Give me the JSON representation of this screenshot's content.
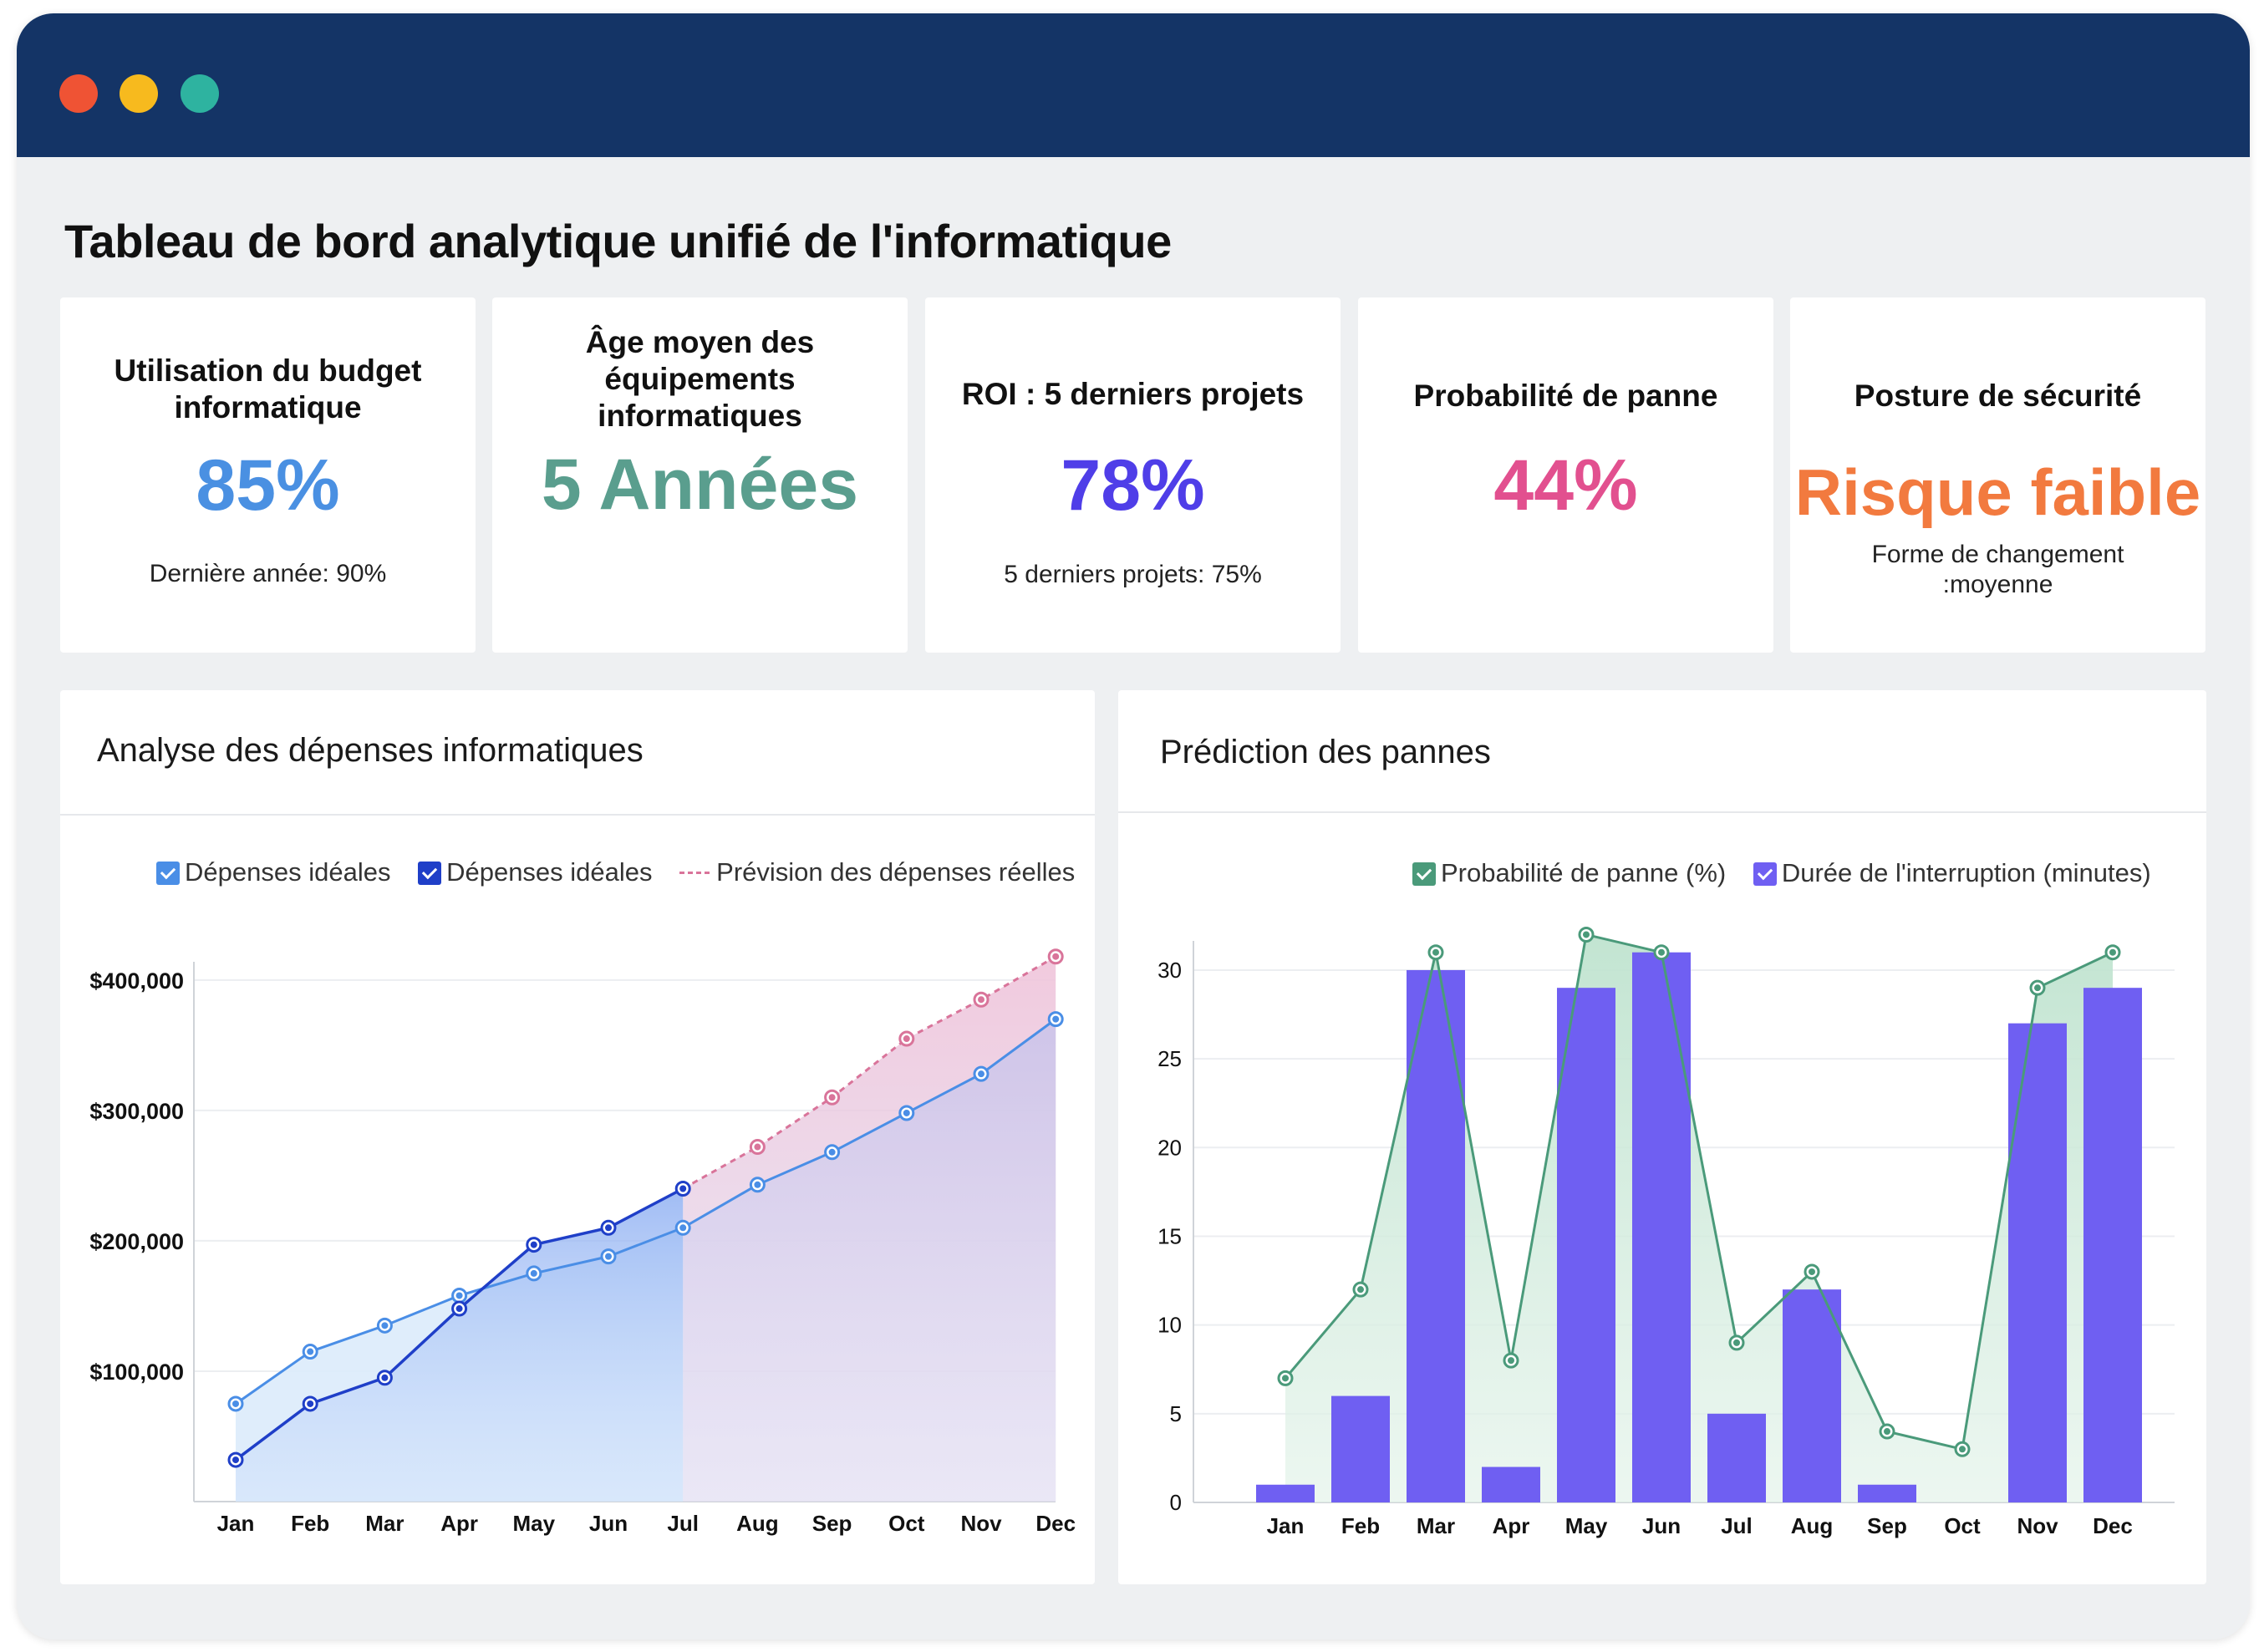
{
  "window": {
    "controls": [
      "close",
      "minimize",
      "maximize"
    ],
    "colors": {
      "titlebar": "#143466",
      "close": "#ef5334",
      "minimize": "#f7ba1e",
      "maximize": "#2eb3a0"
    }
  },
  "page_title": "Tableau de bord analytique unifié de l'informatique",
  "kpis": [
    {
      "label": "Utilisation du budget informatique",
      "value": "85%",
      "sub": "Dernière année: 90%",
      "color": "#4a90e2"
    },
    {
      "label": "Âge moyen des équipements informatiques",
      "value": "5 Années",
      "sub": "",
      "color": "#5a9e8e"
    },
    {
      "label": "ROI : 5 derniers projets",
      "value": "78%",
      "sub": "5 derniers projets: 75%",
      "color": "#4f3ee8"
    },
    {
      "label": "Probabilité de panne",
      "value": "44%",
      "sub": "",
      "color": "#e2508f"
    },
    {
      "label": "Posture de sécurité",
      "value": "Risque faible",
      "sub": "Forme de changement :moyenne",
      "color": "#f27a3f"
    }
  ],
  "spend_panel": {
    "title": "Analyse des dépenses informatiques",
    "legend": [
      {
        "label": "Dépenses idéales",
        "type": "checkbox",
        "color": "#4a8ee6"
      },
      {
        "label": "Dépenses idéales",
        "type": "checkbox",
        "color": "#1f3fc8"
      },
      {
        "label": "Prévision des dépenses réelles",
        "type": "dashed-line",
        "color": "#d9749a"
      }
    ]
  },
  "failure_panel": {
    "title": "Prédiction des pannes",
    "legend": [
      {
        "label": "Probabilité de panne (%)",
        "type": "checkbox",
        "color": "#4a9a7a"
      },
      {
        "label": "Durée de l'interruption (minutes)",
        "type": "checkbox",
        "color": "#6f5ff2"
      }
    ]
  },
  "chart_data": [
    {
      "type": "line",
      "title": "Analyse des dépenses informatiques",
      "categories": [
        "Jan",
        "Feb",
        "Mar",
        "Apr",
        "May",
        "Jun",
        "Jul",
        "Aug",
        "Sep",
        "Oct",
        "Nov",
        "Dec"
      ],
      "ytick_labels": [
        "$100,000",
        "$200,000",
        "$300,000",
        "$400,000"
      ],
      "yticks": [
        100000,
        200000,
        300000,
        400000
      ],
      "ylim": [
        0,
        430000
      ],
      "grid": true,
      "legend_position": "top",
      "series": [
        {
          "name": "Dépenses idéales",
          "color": "#4a8ee6",
          "area": true,
          "values": [
            75000,
            115000,
            135000,
            158000,
            175000,
            188000,
            210000,
            243000,
            268000,
            298000,
            328000,
            370000
          ]
        },
        {
          "name": "Dépenses idéales",
          "color": "#1f3fc8",
          "area": true,
          "values": [
            32000,
            75000,
            95000,
            148000,
            197000,
            210000,
            240000,
            null,
            null,
            null,
            null,
            null
          ]
        },
        {
          "name": "Prévision des dépenses réelles",
          "color": "#d9749a",
          "dashed": true,
          "area": true,
          "values": [
            null,
            null,
            null,
            null,
            null,
            null,
            240000,
            272000,
            310000,
            355000,
            385000,
            418000
          ]
        }
      ]
    },
    {
      "type": "bar",
      "title": "Prédiction des pannes",
      "categories": [
        "Jan",
        "Feb",
        "Mar",
        "Apr",
        "May",
        "Jun",
        "Jul",
        "Aug",
        "Sep",
        "Oct",
        "Nov",
        "Dec"
      ],
      "yticks": [
        0,
        5,
        10,
        15,
        20,
        25,
        30
      ],
      "ylim": [
        0,
        34
      ],
      "grid": true,
      "legend_position": "top-right",
      "series": [
        {
          "name": "Probabilité de panne (%)",
          "type": "area-line",
          "color": "#4a9a7a",
          "values": [
            7,
            12,
            31,
            8,
            32,
            31,
            9,
            13,
            4,
            3,
            29,
            31
          ]
        },
        {
          "name": "Durée de l'interruption (minutes)",
          "type": "bar",
          "color": "#6f5ff2",
          "values": [
            1,
            6,
            30,
            2,
            29,
            31,
            5,
            12,
            1,
            0,
            27,
            29
          ]
        }
      ]
    }
  ]
}
